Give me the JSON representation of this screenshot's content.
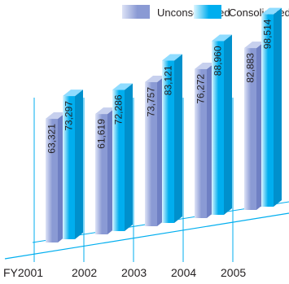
{
  "chart_data": {
    "type": "bar",
    "categories": [
      "FY2001",
      "2002",
      "2003",
      "2004",
      "2005"
    ],
    "series": [
      {
        "name": "Unconsolidated",
        "values": [
          63321,
          61619,
          73757,
          76272,
          82883
        ],
        "labels": [
          "63,321",
          "61,619",
          "73,757",
          "76,272",
          "82,883"
        ]
      },
      {
        "name": "Consolidated",
        "values": [
          73297,
          72286,
          83121,
          88960,
          98514
        ],
        "labels": [
          "73,297",
          "72,286",
          "83,121",
          "88,960",
          "98,514"
        ]
      }
    ],
    "ylim": [
      0,
      100000
    ],
    "grid": false,
    "legend_position": "top-right",
    "colors": {
      "unconsolidated_light": "#dde3f6",
      "unconsolidated_dark": "#8a9ad4",
      "consolidated_light": "#dff6ff",
      "consolidated_dark": "#00aeef",
      "axis": "#00aeef",
      "text": "#231f20"
    }
  }
}
